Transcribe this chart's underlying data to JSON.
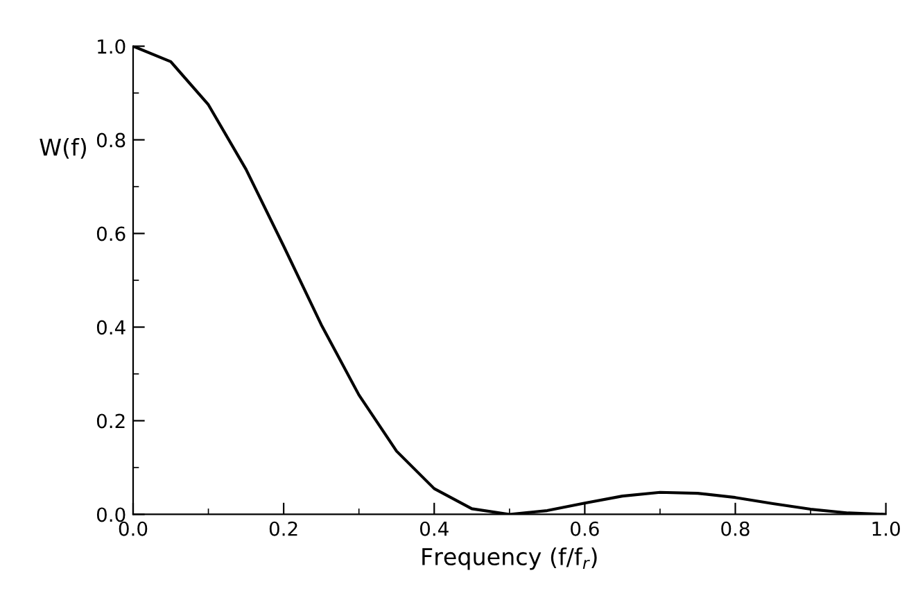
{
  "chart_data": {
    "type": "line",
    "xlabel": "Frequency (f/f$_{r}$)",
    "ylabel": "W(f)",
    "x": [
      0,
      0.05,
      0.1,
      0.15,
      0.2,
      0.25,
      0.3,
      0.35,
      0.4,
      0.45,
      0.5,
      0.55,
      0.6,
      0.65,
      0.7,
      0.75,
      0.8,
      0.85,
      0.9,
      0.95,
      1.0
    ],
    "series": [
      {
        "color": "#000000",
        "values": [
          1.0,
          0.967,
          0.875,
          0.737,
          0.573,
          0.405,
          0.255,
          0.135,
          0.055,
          0.012,
          0.0,
          0.008,
          0.024,
          0.039,
          0.047,
          0.045,
          0.036,
          0.023,
          0.011,
          0.003,
          0.0
        ]
      }
    ],
    "xlim": [
      0.0,
      1.0
    ],
    "ylim": [
      0.0,
      1.0
    ],
    "xticks": [
      {
        "value": 0,
        "label": "0.0"
      },
      0.2,
      0.4,
      0.6,
      0.8,
      {
        "value": 1,
        "label": "1.0"
      }
    ],
    "yticks": [
      {
        "value": 0,
        "label": "0.0"
      },
      0.2,
      0.4,
      0.6,
      0.8,
      {
        "value": 1,
        "label": "1.0"
      }
    ],
    "grid": false,
    "legend": false,
    "marker": "none",
    "line_style": "solid"
  }
}
